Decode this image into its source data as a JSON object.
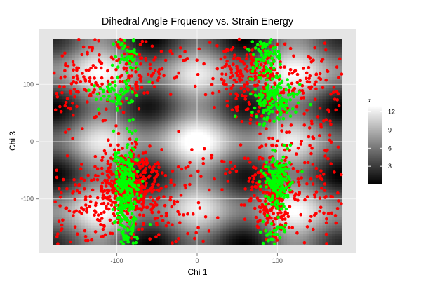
{
  "chart_data": {
    "type": "scatter",
    "title": "Dihedral Angle Frquency vs. Strain Energy",
    "xlabel": "Chi 1",
    "ylabel": "Chi 3",
    "xlim": [
      -180,
      180
    ],
    "ylim": [
      -180,
      180
    ],
    "x_ticks": [
      -100,
      0,
      100
    ],
    "y_ticks": [
      -100,
      0,
      100
    ],
    "x_tick_labels": [
      "-100",
      "0",
      "100"
    ],
    "y_tick_labels": [
      "-100",
      "0",
      "100"
    ],
    "grid": true,
    "background": {
      "type": "heatmap",
      "variable": "z",
      "description": "strain energy surface, low (black) at gauche minima near (±60..100, ±80), high (white) near (0,0), (±180,0), (0,±180)",
      "colormap": [
        "#000000",
        "#ffffff"
      ],
      "range": [
        0,
        13
      ]
    },
    "legend": {
      "title": "z",
      "position": "right",
      "ticks": [
        3,
        6,
        9,
        12
      ],
      "tick_labels": [
        "3",
        "6",
        "9",
        "12"
      ]
    },
    "series": [
      {
        "color": "#ff0000",
        "clusters": [
          {
            "cx": -85,
            "cy": -75,
            "sx": 18,
            "sy": 32,
            "n": 420
          },
          {
            "cx": 95,
            "cy": -95,
            "sx": 14,
            "sy": 45,
            "n": 260
          },
          {
            "cx": 75,
            "cy": 110,
            "sx": 26,
            "sy": 32,
            "n": 240
          },
          {
            "cx": -90,
            "cy": 130,
            "sx": 30,
            "sy": 40,
            "n": 150
          },
          {
            "cx": -140,
            "cy": -120,
            "sx": 28,
            "sy": 40,
            "n": 120
          },
          {
            "cx": 150,
            "cy": 80,
            "sx": 25,
            "sy": 45,
            "n": 110
          },
          {
            "cx": 150,
            "cy": -90,
            "sx": 25,
            "sy": 50,
            "n": 90
          },
          {
            "cx": -150,
            "cy": 90,
            "sx": 22,
            "sy": 40,
            "n": 80
          },
          {
            "cx": -40,
            "cy": -110,
            "sx": 30,
            "sy": 40,
            "n": 70
          },
          {
            "cx": 10,
            "cy": 150,
            "sx": 60,
            "sy": 20,
            "n": 40
          },
          {
            "cx": 30,
            "cy": -70,
            "sx": 35,
            "sy": 35,
            "n": 40
          }
        ]
      },
      {
        "color": "#00ff00",
        "clusters": [
          {
            "cx": -88,
            "cy": -80,
            "sx": 8,
            "sy": 40,
            "n": 260
          },
          {
            "cx": 100,
            "cy": -70,
            "sx": 8,
            "sy": 22,
            "n": 180
          },
          {
            "cx": 95,
            "cy": 75,
            "sx": 14,
            "sy": 18,
            "n": 150
          },
          {
            "cx": 85,
            "cy": 145,
            "sx": 10,
            "sy": 22,
            "n": 80
          },
          {
            "cx": -100,
            "cy": 80,
            "sx": 14,
            "sy": 14,
            "n": 60
          },
          {
            "cx": -85,
            "cy": 150,
            "sx": 8,
            "sy": 20,
            "n": 50
          },
          {
            "cx": -85,
            "cy": -160,
            "sx": 7,
            "sy": 12,
            "n": 30
          },
          {
            "cx": 95,
            "cy": -160,
            "sx": 8,
            "sy": 12,
            "n": 30
          }
        ]
      }
    ]
  }
}
